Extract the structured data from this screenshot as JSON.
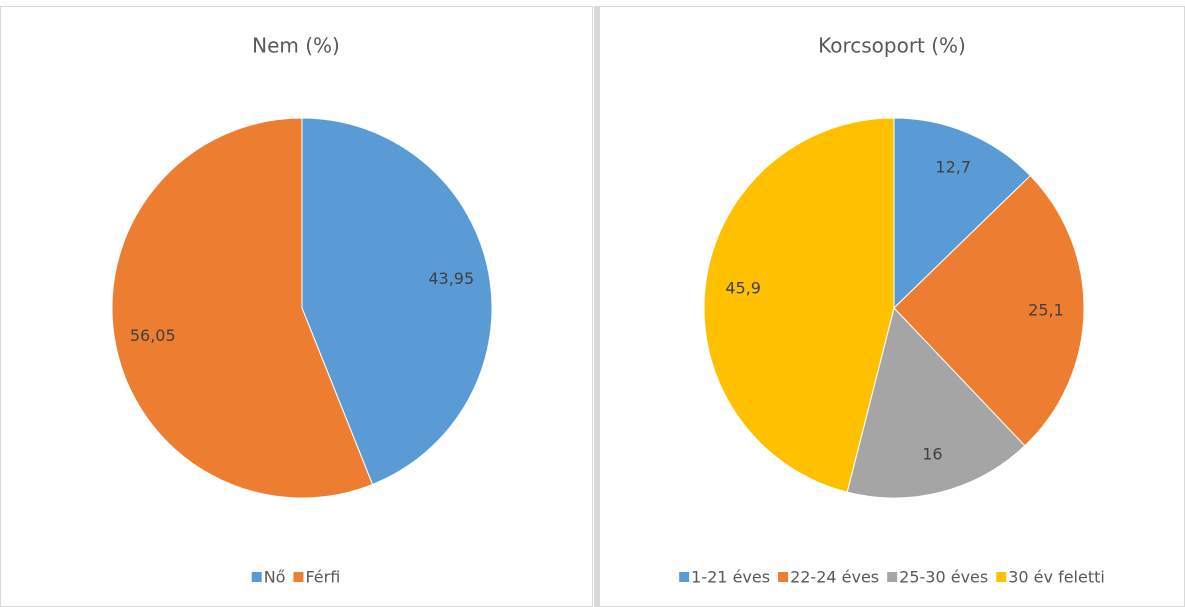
{
  "chart_data": [
    {
      "type": "pie",
      "title": "Nem (%)",
      "categories": [
        "Nő",
        "Férfi"
      ],
      "values": [
        43.95,
        56.05
      ],
      "value_labels": [
        "43,95",
        "56,05"
      ],
      "colors": [
        "#5b9bd5",
        "#ed7d31"
      ]
    },
    {
      "type": "pie",
      "title": "Korcsoport (%)",
      "categories": [
        "1-21 éves",
        "22-24 éves",
        "25-30 éves",
        "30 év feletti"
      ],
      "values": [
        12.7,
        25.1,
        16,
        45.9
      ],
      "value_labels": [
        "12,7",
        "25,1",
        "16",
        "45,9"
      ],
      "colors": [
        "#5b9bd5",
        "#ed7d31",
        "#a5a5a5",
        "#ffc000"
      ]
    }
  ]
}
